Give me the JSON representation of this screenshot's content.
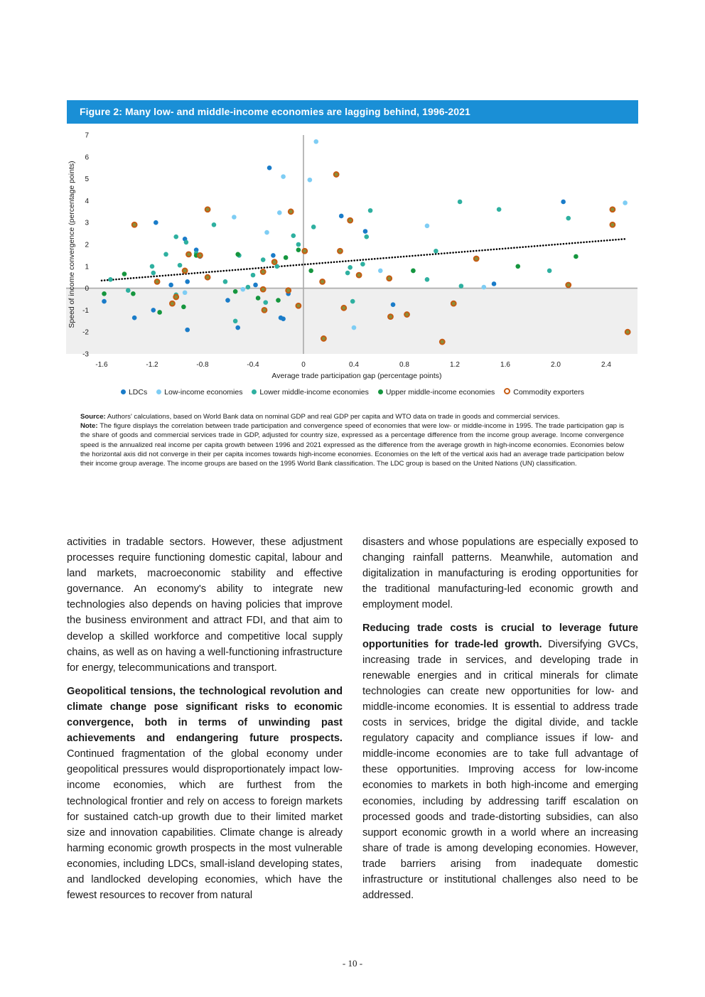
{
  "figure": {
    "title": "Figure 2: Many low- and middle-income economies are lagging behind, 1996-2021"
  },
  "chart_data": {
    "type": "scatter",
    "xlabel": "Average trade participation gap (percentage points)",
    "ylabel": "Speed of income convergence (percentage points)",
    "xlim": [
      -1.6,
      2.6
    ],
    "ylim": [
      -3,
      7
    ],
    "xticks": [
      "-1.6",
      "-1.2",
      "-0.8",
      "-0.4",
      "0",
      "0.4",
      "0.8",
      "1.2",
      "1.6",
      "2.0",
      "2.4"
    ],
    "yticks": [
      "7",
      "6",
      "5",
      "4",
      "3",
      "2",
      "1",
      "0",
      "-1",
      "-2",
      "-3"
    ],
    "legend_position": "bottom",
    "quadrant_shading": "below horizontal axis shaded light grey",
    "trendline": {
      "style": "dotted",
      "color": "#000000",
      "x": [
        -1.6,
        2.55
      ],
      "y": [
        0.35,
        2.25
      ]
    },
    "series": [
      {
        "name": "LDCs",
        "color": "#1a7cc9",
        "marker": "filled",
        "points": [
          [
            -1.58,
            -0.6
          ],
          [
            -1.34,
            -1.35
          ],
          [
            -1.17,
            3.0
          ],
          [
            -1.19,
            -1.0
          ],
          [
            -1.05,
            0.15
          ],
          [
            -0.94,
            2.25
          ],
          [
            -0.85,
            1.75
          ],
          [
            -0.92,
            -1.9
          ],
          [
            -0.92,
            0.3
          ],
          [
            -0.82,
            1.45
          ],
          [
            -0.6,
            -0.55
          ],
          [
            -0.52,
            -1.8
          ],
          [
            -0.38,
            0.15
          ],
          [
            -0.27,
            5.5
          ],
          [
            -0.24,
            1.5
          ],
          [
            -0.18,
            -1.35
          ],
          [
            -0.16,
            -1.4
          ],
          [
            -0.12,
            -0.25
          ],
          [
            0.3,
            3.3
          ],
          [
            0.49,
            2.6
          ],
          [
            0.71,
            -0.75
          ],
          [
            1.51,
            0.2
          ],
          [
            2.06,
            3.95
          ]
        ]
      },
      {
        "name": "Low-income economies",
        "color": "#7ecdf4",
        "marker": "filled",
        "points": [
          [
            -0.94,
            -0.2
          ],
          [
            -0.55,
            3.25
          ],
          [
            -0.48,
            -0.05
          ],
          [
            -0.29,
            2.55
          ],
          [
            -0.19,
            3.45
          ],
          [
            -0.16,
            5.1
          ],
          [
            0.05,
            4.95
          ],
          [
            0.1,
            6.7
          ],
          [
            0.4,
            -1.8
          ],
          [
            0.61,
            0.8
          ],
          [
            0.98,
            2.85
          ],
          [
            1.43,
            0.05
          ],
          [
            2.55,
            3.9
          ]
        ]
      },
      {
        "name": "Lower middle-income economies",
        "color": "#2eb0a0",
        "marker": "filled",
        "points": [
          [
            -1.53,
            0.4
          ],
          [
            -1.39,
            -0.1
          ],
          [
            -1.19,
            0.7
          ],
          [
            -1.2,
            1.0
          ],
          [
            -1.09,
            1.55
          ],
          [
            -1.01,
            2.35
          ],
          [
            -1.01,
            -0.3
          ],
          [
            -0.98,
            1.05
          ],
          [
            -0.93,
            2.1
          ],
          [
            -0.85,
            1.6
          ],
          [
            -0.71,
            2.9
          ],
          [
            -0.62,
            0.3
          ],
          [
            -0.54,
            -1.5
          ],
          [
            -0.51,
            1.5
          ],
          [
            -0.44,
            0.05
          ],
          [
            -0.4,
            0.6
          ],
          [
            -0.32,
            1.3
          ],
          [
            -0.3,
            -0.65
          ],
          [
            -0.21,
            1.0
          ],
          [
            -0.08,
            2.4
          ],
          [
            -0.04,
            2.0
          ],
          [
            0.08,
            2.8
          ],
          [
            0.35,
            0.7
          ],
          [
            0.37,
            0.95
          ],
          [
            0.39,
            -0.6
          ],
          [
            0.47,
            1.1
          ],
          [
            0.5,
            2.35
          ],
          [
            0.53,
            3.55
          ],
          [
            0.87,
            0.8
          ],
          [
            0.98,
            0.4
          ],
          [
            1.05,
            1.7
          ],
          [
            1.24,
            3.95
          ],
          [
            1.55,
            3.6
          ],
          [
            1.25,
            0.1
          ],
          [
            1.95,
            0.8
          ],
          [
            2.1,
            3.2
          ]
        ]
      },
      {
        "name": "Upper middle-income economies",
        "color": "#15963e",
        "marker": "filled",
        "points": [
          [
            -1.58,
            -0.25
          ],
          [
            -1.42,
            0.65
          ],
          [
            -1.35,
            -0.25
          ],
          [
            -1.14,
            -1.1
          ],
          [
            -0.95,
            -0.85
          ],
          [
            -0.85,
            1.5
          ],
          [
            -0.54,
            -0.15
          ],
          [
            -0.52,
            1.55
          ],
          [
            -0.36,
            -0.45
          ],
          [
            -0.2,
            -0.55
          ],
          [
            -0.14,
            1.4
          ],
          [
            -0.04,
            1.75
          ],
          [
            0.06,
            0.8
          ],
          [
            0.87,
            0.8
          ],
          [
            1.7,
            1.0
          ],
          [
            2.16,
            1.45
          ]
        ]
      },
      {
        "name": "Commodity exporters",
        "color": "#c75b12",
        "marker": "ring",
        "points": [
          [
            -1.34,
            2.9
          ],
          [
            -1.16,
            0.3
          ],
          [
            -1.04,
            -0.7
          ],
          [
            -1.01,
            -0.4
          ],
          [
            -0.94,
            0.8
          ],
          [
            -0.91,
            1.55
          ],
          [
            -0.82,
            1.5
          ],
          [
            -0.76,
            3.6
          ],
          [
            -0.76,
            0.5
          ],
          [
            -0.32,
            0.75
          ],
          [
            -0.32,
            -0.05
          ],
          [
            -0.31,
            -1.0
          ],
          [
            -0.23,
            1.2
          ],
          [
            -0.12,
            -0.1
          ],
          [
            -0.1,
            3.5
          ],
          [
            -0.04,
            -0.8
          ],
          [
            0.01,
            1.7
          ],
          [
            0.15,
            0.3
          ],
          [
            0.16,
            -2.3
          ],
          [
            0.26,
            5.2
          ],
          [
            0.29,
            1.7
          ],
          [
            0.32,
            -0.9
          ],
          [
            0.37,
            3.1
          ],
          [
            0.44,
            0.6
          ],
          [
            0.68,
            0.45
          ],
          [
            0.69,
            -1.3
          ],
          [
            0.82,
            -1.2
          ],
          [
            1.1,
            -2.45
          ],
          [
            1.19,
            -0.7
          ],
          [
            1.37,
            1.35
          ],
          [
            2.1,
            0.15
          ],
          [
            2.45,
            3.6
          ],
          [
            2.45,
            2.9
          ],
          [
            2.57,
            -2.0
          ]
        ]
      }
    ]
  },
  "notes": {
    "source_label": "Source:",
    "source_text": "Authors' calculations, based on World Bank data on nominal GDP and real GDP per capita and WTO data on trade in goods and commercial services.",
    "note_label": "Note:",
    "note_text": "The figure displays the correlation between trade participation and convergence speed of economies that were low- or middle-income in 1995. The trade participation gap is the share of goods and commercial services trade in GDP, adjusted for country size, expressed as a percentage difference from the income group average. Income convergence speed is the annualized real income per capita growth between 1996 and 2021 expressed as the difference from the average growth in high-income economies. Economies below the horizontal axis did not converge in their per capita incomes towards high-income economies. Economies on the left of the vertical axis had an average trade participation below their income group average. The income groups are based on the 1995 World Bank classification. The LDC group is based on the United Nations (UN) classification."
  },
  "body": {
    "left_p1": "activities in tradable sectors. However, these adjustment processes require functioning domestic capital, labour and land markets, macroeconomic stability and effective governance. An economy's ability to integrate new technologies also depends on having policies that improve the business environment and attract FDI, and that aim to develop a skilled workforce and competitive local supply chains, as well as on having a well-functioning infrastructure for energy, telecommunications and transport.",
    "left_p2_bold": "Geopolitical tensions, the technological revolution and climate change pose significant risks to economic convergence, both in terms of unwinding past achievements and endangering future prospects.",
    "left_p2_rest": " Continued fragmentation of the global economy under geopolitical pressures would disproportionately impact low-income economies, which are furthest from the technological frontier and rely on access to foreign markets for sustained catch-up growth due to their limited market size and innovation capabilities. Climate change is already harming economic growth prospects in the most vulnerable economies, including LDCs, small-island developing states, and landlocked developing economies, which have the fewest resources to recover from natural",
    "right_p1": "disasters and whose populations are especially exposed to changing rainfall patterns. Meanwhile, automation and digitalization in manufacturing is eroding opportunities for the traditional manufacturing-led economic growth and employment model.",
    "right_p2_bold": "Reducing trade costs is crucial to leverage future opportunities for trade-led growth.",
    "right_p2_rest": " Diversifying GVCs, increasing trade in services, and developing trade in renewable energies and in critical minerals for climate technologies can create new opportunities for low- and middle-income economies. It is essential to address trade costs in services, bridge the digital divide, and tackle regulatory capacity and compliance issues if low- and middle-income economies are to take full advantage of these opportunities. Improving access for low-income economies to markets in both high-income and emerging economies, including by addressing tariff escalation on processed goods and trade-distorting subsidies, can also support economic growth in a world where an increasing share of trade is among developing economies. However, trade barriers arising from inadequate domestic infrastructure or institutional challenges also need to be addressed."
  },
  "page_number": "- 10 -"
}
